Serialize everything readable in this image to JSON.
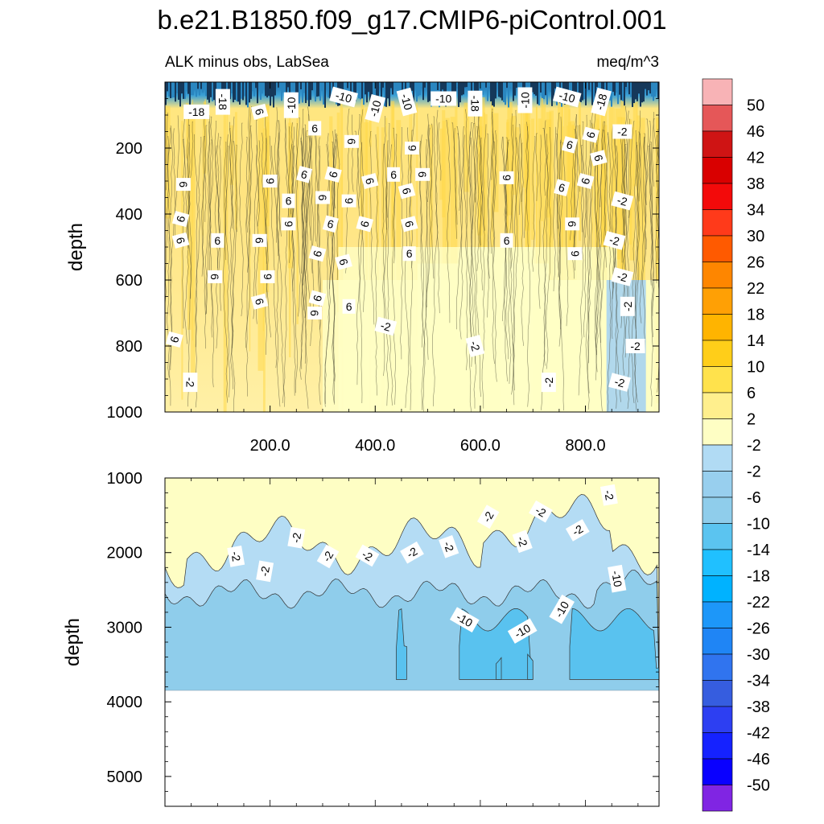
{
  "chart_data": [
    {
      "type": "heatmap",
      "title": "b.e21.B1850.f09_g17.CMIP6-piControl.001",
      "subtitle_left": "ALK minus obs, LabSea",
      "subtitle_right": "meq/m^3",
      "ylabel": "depth",
      "xlim": [
        0,
        940
      ],
      "ylim": [
        1000,
        0
      ],
      "x_ticks": [
        200,
        400,
        600,
        800
      ],
      "x_tick_labels": [
        "200.0",
        "400.0",
        "600.0",
        "800.0"
      ],
      "y_ticks": [
        200,
        400,
        600,
        800,
        1000
      ],
      "y_tick_labels": [
        "200",
        "400",
        "600",
        "800",
        "1000"
      ],
      "dominant_value": 6,
      "contour_labels": [
        {
          "text": "-18",
          "x": 60,
          "y": 90
        },
        {
          "text": "-18",
          "x": 110,
          "y": 60
        },
        {
          "text": "-10",
          "x": 240,
          "y": 70
        },
        {
          "text": "-10",
          "x": 340,
          "y": 45
        },
        {
          "text": "-10",
          "x": 400,
          "y": 80
        },
        {
          "text": "-10",
          "x": 460,
          "y": 60
        },
        {
          "text": "-10",
          "x": 530,
          "y": 50
        },
        {
          "text": "-18",
          "x": 590,
          "y": 65
        },
        {
          "text": "-10",
          "x": 685,
          "y": 55
        },
        {
          "text": "-10",
          "x": 765,
          "y": 45
        },
        {
          "text": "-18",
          "x": 830,
          "y": 60
        },
        {
          "text": "6",
          "x": 180,
          "y": 90
        },
        {
          "text": "6",
          "x": 285,
          "y": 140
        },
        {
          "text": "6",
          "x": 355,
          "y": 180
        },
        {
          "text": "6",
          "x": 470,
          "y": 200
        },
        {
          "text": "6",
          "x": 770,
          "y": 190
        },
        {
          "text": "6",
          "x": 810,
          "y": 160
        },
        {
          "text": "6",
          "x": 825,
          "y": 230
        },
        {
          "text": "-2",
          "x": 870,
          "y": 150
        },
        {
          "text": "6",
          "x": 35,
          "y": 310
        },
        {
          "text": "6",
          "x": 200,
          "y": 300
        },
        {
          "text": "6",
          "x": 265,
          "y": 280
        },
        {
          "text": "6",
          "x": 320,
          "y": 280
        },
        {
          "text": "6",
          "x": 390,
          "y": 300
        },
        {
          "text": "6",
          "x": 435,
          "y": 280
        },
        {
          "text": "6",
          "x": 490,
          "y": 280
        },
        {
          "text": "6",
          "x": 650,
          "y": 290
        },
        {
          "text": "6",
          "x": 755,
          "y": 320
        },
        {
          "text": "6",
          "x": 800,
          "y": 300
        },
        {
          "text": "6",
          "x": 460,
          "y": 330
        },
        {
          "text": "6",
          "x": 235,
          "y": 360
        },
        {
          "text": "6",
          "x": 300,
          "y": 350
        },
        {
          "text": "6",
          "x": 350,
          "y": 360
        },
        {
          "text": "-2",
          "x": 870,
          "y": 360
        },
        {
          "text": "6",
          "x": 30,
          "y": 415
        },
        {
          "text": "6",
          "x": 30,
          "y": 480
        },
        {
          "text": "6",
          "x": 100,
          "y": 480
        },
        {
          "text": "6",
          "x": 180,
          "y": 480
        },
        {
          "text": "6",
          "x": 235,
          "y": 430
        },
        {
          "text": "6",
          "x": 315,
          "y": 430
        },
        {
          "text": "6",
          "x": 380,
          "y": 430
        },
        {
          "text": "6",
          "x": 465,
          "y": 430
        },
        {
          "text": "6",
          "x": 650,
          "y": 480
        },
        {
          "text": "6",
          "x": 775,
          "y": 430
        },
        {
          "text": "6",
          "x": 780,
          "y": 520
        },
        {
          "text": "-2",
          "x": 855,
          "y": 480
        },
        {
          "text": "6",
          "x": 290,
          "y": 520
        },
        {
          "text": "6",
          "x": 340,
          "y": 545
        },
        {
          "text": "6",
          "x": 465,
          "y": 520
        },
        {
          "text": "6",
          "x": 95,
          "y": 590
        },
        {
          "text": "6",
          "x": 195,
          "y": 590
        },
        {
          "text": "-2",
          "x": 870,
          "y": 590
        },
        {
          "text": "6",
          "x": 290,
          "y": 655
        },
        {
          "text": "6",
          "x": 180,
          "y": 665
        },
        {
          "text": "6",
          "x": 350,
          "y": 680
        },
        {
          "text": "6",
          "x": 285,
          "y": 700
        },
        {
          "text": "-2",
          "x": 880,
          "y": 680
        },
        {
          "text": "-2",
          "x": 420,
          "y": 740
        },
        {
          "text": "6",
          "x": 18,
          "y": 780
        },
        {
          "text": "-2",
          "x": 590,
          "y": 800
        },
        {
          "text": "-2",
          "x": 895,
          "y": 800
        },
        {
          "text": "-2",
          "x": 48,
          "y": 910
        },
        {
          "text": "-2",
          "x": 730,
          "y": 910
        },
        {
          "text": "-2",
          "x": 865,
          "y": 910
        }
      ]
    },
    {
      "type": "heatmap",
      "ylabel": "depth",
      "xlim": [
        0,
        940
      ],
      "ylim": [
        5400,
        1000
      ],
      "y_ticks": [
        1000,
        2000,
        3000,
        4000,
        5000
      ],
      "y_tick_labels": [
        "1000",
        "2000",
        "3000",
        "4000",
        "5000"
      ],
      "bottom_depth": 3850,
      "contour_labels": [
        {
          "text": "-2",
          "x": 845,
          "y": 1230
        },
        {
          "text": "-2",
          "x": 615,
          "y": 1520
        },
        {
          "text": "-2",
          "x": 715,
          "y": 1450
        },
        {
          "text": "-2",
          "x": 785,
          "y": 1700
        },
        {
          "text": "-2",
          "x": 680,
          "y": 1850
        },
        {
          "text": "-2",
          "x": 250,
          "y": 1800
        },
        {
          "text": "-2",
          "x": 135,
          "y": 2050
        },
        {
          "text": "-2",
          "x": 310,
          "y": 2050
        },
        {
          "text": "-2",
          "x": 385,
          "y": 2040
        },
        {
          "text": "-2",
          "x": 470,
          "y": 2000
        },
        {
          "text": "-2",
          "x": 540,
          "y": 1920
        },
        {
          "text": "-2",
          "x": 190,
          "y": 2250
        },
        {
          "text": "-10",
          "x": 860,
          "y": 2350
        },
        {
          "text": "-10",
          "x": 755,
          "y": 2760
        },
        {
          "text": "-10",
          "x": 570,
          "y": 2900
        },
        {
          "text": "-10",
          "x": 680,
          "y": 3050
        }
      ]
    }
  ],
  "colorbar": {
    "levels": [
      "50",
      "46",
      "42",
      "38",
      "34",
      "30",
      "26",
      "22",
      "18",
      "14",
      "10",
      "6",
      "2",
      "-2",
      "-2",
      "-6",
      "-10",
      "-14",
      "-18",
      "-22",
      "-26",
      "-30",
      "-34",
      "-38",
      "-42",
      "-46",
      "-50"
    ],
    "colors": [
      "#f8b3b6",
      "#e55758",
      "#cf1414",
      "#d90000",
      "#f30a0a",
      "#ff3a1a",
      "#ff5a00",
      "#fe8600",
      "#ffa005",
      "#ffb400",
      "#ffce19",
      "#ffe24c",
      "#ffef8d",
      "#fefec4",
      "#b1dbf4",
      "#98cfee",
      "#8fcdeb",
      "#5bc4f0",
      "#20c0ff",
      "#00b2ff",
      "#1d97f9",
      "#1f85f5",
      "#3074ef",
      "#365ddf",
      "#2d3ff2",
      "#1522ff",
      "#0900ff",
      "#8025e3"
    ]
  }
}
